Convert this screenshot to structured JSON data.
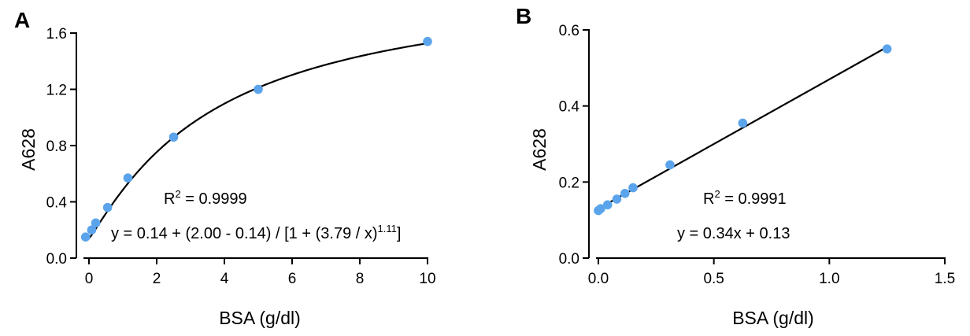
{
  "chart_data": [
    {
      "panel": "A",
      "type": "scatter",
      "xlabel": "BSA (g/dl)",
      "ylabel": "A628",
      "xlim": [
        -0.2,
        10
      ],
      "ylim": [
        0.0,
        1.6
      ],
      "xticks": [
        0,
        2,
        4,
        6,
        8,
        10
      ],
      "xtick_labels": [
        "0",
        "2",
        "4",
        "6",
        "8",
        "10"
      ],
      "yticks": [
        0.0,
        0.4,
        0.8,
        1.2,
        1.6
      ],
      "ytick_labels": [
        "0.0",
        "0.4",
        "0.8",
        "1.2",
        "1.6"
      ],
      "grid": false,
      "point_color": "#5ba4ec",
      "curve_color": "#000000",
      "points": [
        {
          "x": -0.1,
          "y": 0.15
        },
        {
          "x": 0.08,
          "y": 0.2
        },
        {
          "x": 0.2,
          "y": 0.25
        },
        {
          "x": 0.55,
          "y": 0.36
        },
        {
          "x": 1.15,
          "y": 0.57
        },
        {
          "x": 2.5,
          "y": 0.86
        },
        {
          "x": 5.0,
          "y": 1.2
        },
        {
          "x": 10.0,
          "y": 1.54
        }
      ],
      "fit": {
        "type": "logistic4",
        "bottom": 0.14,
        "top": 2.0,
        "ec50": 3.79,
        "hill": 1.11,
        "x_range": [
          -0.1,
          10
        ]
      },
      "r2_prefix": "R",
      "r2_exp": "2",
      "r2_value": " = 0.9999",
      "equation_main": "y = 0.14 + (2.00 - 0.14) / [1 + (3.79 / x)",
      "equation_exp": "1.11",
      "equation_end": "]"
    },
    {
      "panel": "B",
      "type": "scatter",
      "xlabel": "BSA (g/dl)",
      "ylabel": "A628",
      "xlim": [
        -0.02,
        1.5
      ],
      "ylim": [
        0.0,
        0.6
      ],
      "xticks": [
        0.0,
        0.5,
        1.0,
        1.5
      ],
      "xtick_labels": [
        "0.0",
        "0.5",
        "1.0",
        "1.5"
      ],
      "yticks": [
        0.0,
        0.2,
        0.4,
        0.6
      ],
      "ytick_labels": [
        "0.0",
        "0.2",
        "0.4",
        "0.6"
      ],
      "grid": false,
      "point_color": "#5ba4ec",
      "curve_color": "#000000",
      "points": [
        {
          "x": 0.0,
          "y": 0.125
        },
        {
          "x": 0.01,
          "y": 0.13
        },
        {
          "x": 0.04,
          "y": 0.14
        },
        {
          "x": 0.08,
          "y": 0.155
        },
        {
          "x": 0.115,
          "y": 0.17
        },
        {
          "x": 0.15,
          "y": 0.185
        },
        {
          "x": 0.31,
          "y": 0.245
        },
        {
          "x": 0.625,
          "y": 0.355
        },
        {
          "x": 1.25,
          "y": 0.55
        }
      ],
      "fit": {
        "type": "linear",
        "slope": 0.34,
        "intercept": 0.13,
        "x_range": [
          0.0,
          1.25
        ]
      },
      "r2_prefix": "R",
      "r2_exp": "2",
      "r2_value": " = 0.9991",
      "equation_main": "y = 0.34x + 0.13",
      "equation_exp": "",
      "equation_end": ""
    }
  ]
}
